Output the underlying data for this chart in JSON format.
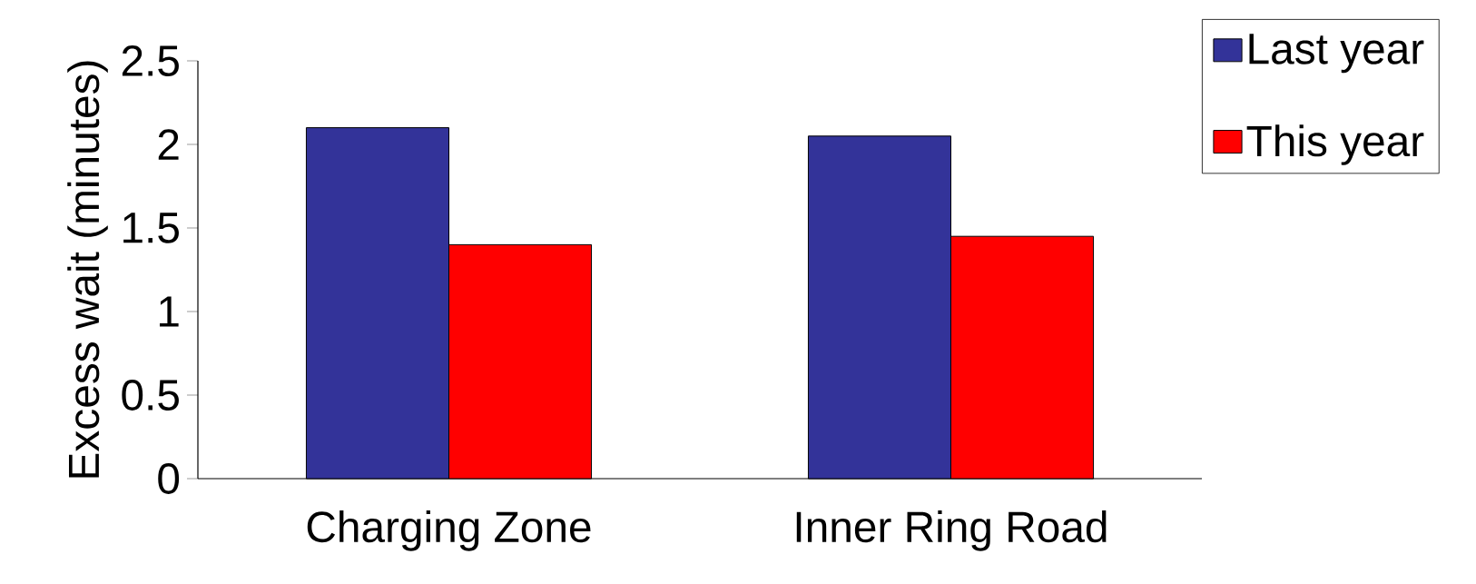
{
  "chart_data": {
    "type": "bar",
    "ylabel": "Excess wait (minutes)",
    "categories": [
      "Charging Zone",
      "Inner Ring Road"
    ],
    "series": [
      {
        "name": "Last year",
        "color": "#333399",
        "values": [
          2.1,
          2.05
        ]
      },
      {
        "name": "This year",
        "color": "#ff0000",
        "values": [
          1.4,
          1.45
        ]
      }
    ],
    "ylim": [
      0,
      2.5
    ],
    "yticks": [
      0,
      0.5,
      1,
      1.5,
      2,
      2.5
    ],
    "legend": "top right"
  }
}
